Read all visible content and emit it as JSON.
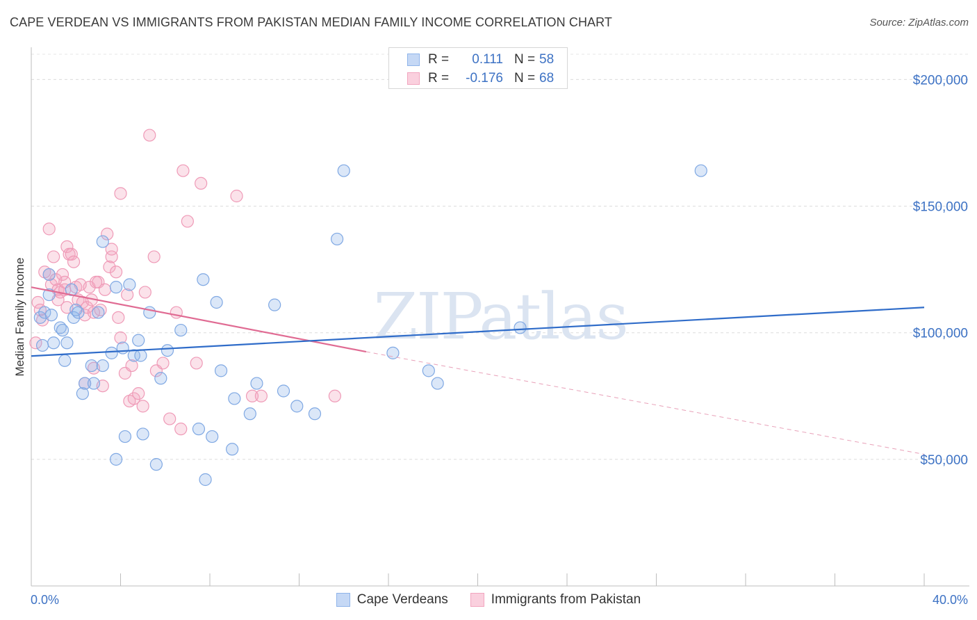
{
  "title": "CAPE VERDEAN VS IMMIGRANTS FROM PAKISTAN MEDIAN FAMILY INCOME CORRELATION CHART",
  "source": "Source: ZipAtlas.com",
  "watermark": "ZIPatlas",
  "legend": {
    "rows": [
      {
        "r_label": "R =",
        "r_value": "0.111",
        "n_label": "N =",
        "n_value": "58",
        "color": "#8fb4ea"
      },
      {
        "r_label": "R =",
        "r_value": "-0.176",
        "n_label": "N =",
        "n_value": "68",
        "color": "#f2a5bf"
      }
    ]
  },
  "bottom_legend": [
    {
      "label": "Cape Verdeans",
      "color": "#8fb4ea"
    },
    {
      "label": "Immigrants from Pakistan",
      "color": "#f2a5bf"
    }
  ],
  "chart_data": {
    "type": "scatter",
    "title": "CAPE VERDEAN VS IMMIGRANTS FROM PAKISTAN MEDIAN FAMILY INCOME CORRELATION CHART",
    "xlabel": "",
    "ylabel": "Median Family Income",
    "xlim": [
      0,
      40
    ],
    "ylim": [
      0,
      210000
    ],
    "x_tick_labels": [
      "0.0%",
      "40.0%"
    ],
    "y_ticks": [
      50000,
      100000,
      150000,
      200000
    ],
    "y_tick_labels": [
      "$50,000",
      "$100,000",
      "$150,000",
      "$200,000"
    ],
    "grid": "horizontal dashed",
    "series": [
      {
        "name": "Cape Verdeans",
        "color": "#8fb4ea",
        "line_color": "#2f6cc9",
        "trend": {
          "x": [
            0,
            40
          ],
          "y": [
            90800,
            110000
          ]
        },
        "points": [
          [
            0.4,
            106000
          ],
          [
            0.6,
            108000
          ],
          [
            0.8,
            115000
          ],
          [
            0.8,
            123000
          ],
          [
            0.9,
            107000
          ],
          [
            1.0,
            96000
          ],
          [
            1.3,
            102000
          ],
          [
            1.4,
            101000
          ],
          [
            1.5,
            89000
          ],
          [
            1.6,
            96000
          ],
          [
            1.8,
            117000
          ],
          [
            1.9,
            106000
          ],
          [
            2.0,
            109000
          ],
          [
            2.3,
            76000
          ],
          [
            2.4,
            80000
          ],
          [
            2.7,
            87000
          ],
          [
            2.8,
            80000
          ],
          [
            3.0,
            108000
          ],
          [
            3.2,
            87000
          ],
          [
            3.2,
            136000
          ],
          [
            3.6,
            92000
          ],
          [
            3.8,
            50000
          ],
          [
            3.8,
            118000
          ],
          [
            4.1,
            94000
          ],
          [
            4.2,
            59000
          ],
          [
            4.4,
            119000
          ],
          [
            4.6,
            91000
          ],
          [
            4.8,
            97000
          ],
          [
            4.9,
            91000
          ],
          [
            5.0,
            60000
          ],
          [
            5.3,
            108000
          ],
          [
            5.6,
            48000
          ],
          [
            5.8,
            82000
          ],
          [
            6.1,
            93000
          ],
          [
            6.7,
            101000
          ],
          [
            7.5,
            62000
          ],
          [
            7.7,
            121000
          ],
          [
            7.8,
            42000
          ],
          [
            8.1,
            59000
          ],
          [
            8.3,
            112000
          ],
          [
            8.5,
            85000
          ],
          [
            9.0,
            54000
          ],
          [
            9.1,
            74000
          ],
          [
            9.8,
            68000
          ],
          [
            10.1,
            80000
          ],
          [
            10.9,
            111000
          ],
          [
            11.3,
            77000
          ],
          [
            11.9,
            71000
          ],
          [
            12.7,
            68000
          ],
          [
            13.7,
            137000
          ],
          [
            14.0,
            164000
          ],
          [
            16.2,
            92000
          ],
          [
            17.8,
            85000
          ],
          [
            18.2,
            80000
          ],
          [
            21.9,
            102000
          ],
          [
            30.0,
            164000
          ],
          [
            0.5,
            95000
          ],
          [
            2.1,
            108000
          ]
        ]
      },
      {
        "name": "Immigrants from Pakistan",
        "color": "#f2a5bf",
        "line_color": "#e06b93",
        "trend": {
          "x": [
            0,
            15
          ],
          "y": [
            118000,
            92500
          ]
        },
        "trend_ext": {
          "x": [
            15,
            40
          ],
          "y": [
            92500,
            52000
          ]
        },
        "points": [
          [
            0.3,
            112000
          ],
          [
            0.4,
            109000
          ],
          [
            0.5,
            105000
          ],
          [
            0.6,
            124000
          ],
          [
            0.8,
            123000
          ],
          [
            0.9,
            119000
          ],
          [
            0.8,
            141000
          ],
          [
            1.0,
            130000
          ],
          [
            1.1,
            121000
          ],
          [
            1.2,
            117000
          ],
          [
            1.2,
            113000
          ],
          [
            1.3,
            116000
          ],
          [
            1.4,
            123000
          ],
          [
            1.5,
            117000
          ],
          [
            1.5,
            120000
          ],
          [
            1.6,
            134000
          ],
          [
            1.7,
            131000
          ],
          [
            1.8,
            131000
          ],
          [
            1.9,
            128000
          ],
          [
            2.0,
            118000
          ],
          [
            2.1,
            113000
          ],
          [
            2.2,
            119000
          ],
          [
            2.3,
            112000
          ],
          [
            2.4,
            107000
          ],
          [
            2.4,
            80000
          ],
          [
            2.5,
            110000
          ],
          [
            2.6,
            118000
          ],
          [
            2.7,
            113000
          ],
          [
            2.8,
            108000
          ],
          [
            2.8,
            86000
          ],
          [
            3.0,
            120000
          ],
          [
            3.1,
            109000
          ],
          [
            3.2,
            79000
          ],
          [
            3.3,
            117000
          ],
          [
            3.4,
            139000
          ],
          [
            3.5,
            126000
          ],
          [
            3.6,
            130000
          ],
          [
            3.6,
            133000
          ],
          [
            3.8,
            124000
          ],
          [
            3.9,
            106000
          ],
          [
            4.0,
            98000
          ],
          [
            4.0,
            155000
          ],
          [
            4.2,
            84000
          ],
          [
            4.3,
            115000
          ],
          [
            4.4,
            73000
          ],
          [
            4.5,
            87000
          ],
          [
            4.6,
            74000
          ],
          [
            4.8,
            76000
          ],
          [
            5.0,
            71000
          ],
          [
            5.1,
            116000
          ],
          [
            5.3,
            178000
          ],
          [
            5.5,
            130000
          ],
          [
            5.6,
            85000
          ],
          [
            5.9,
            88000
          ],
          [
            6.2,
            66000
          ],
          [
            6.5,
            108000
          ],
          [
            6.7,
            62000
          ],
          [
            6.8,
            164000
          ],
          [
            7.0,
            144000
          ],
          [
            7.4,
            88000
          ],
          [
            7.6,
            159000
          ],
          [
            9.2,
            154000
          ],
          [
            9.9,
            75000
          ],
          [
            10.3,
            75000
          ],
          [
            13.6,
            75000
          ],
          [
            0.2,
            96000
          ],
          [
            1.6,
            110000
          ],
          [
            2.9,
            120000
          ]
        ]
      }
    ]
  }
}
